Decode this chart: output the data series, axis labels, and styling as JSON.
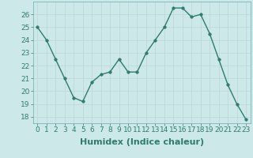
{
  "x": [
    0,
    1,
    2,
    3,
    4,
    5,
    6,
    7,
    8,
    9,
    10,
    11,
    12,
    13,
    14,
    15,
    16,
    17,
    18,
    19,
    20,
    21,
    22,
    23
  ],
  "y": [
    25,
    24,
    22.5,
    21,
    19.5,
    19.2,
    20.7,
    21.3,
    21.5,
    22.5,
    21.5,
    21.5,
    23,
    24,
    25,
    26.5,
    26.5,
    25.8,
    26.0,
    24.5,
    22.5,
    20.5,
    19,
    17.8
  ],
  "line_color": "#2e7d6e",
  "marker_color": "#2e7d6e",
  "bg_color": "#cce8e8",
  "grid_color": "#c0d8d8",
  "xlabel": "Humidex (Indice chaleur)",
  "xlabel_fontsize": 8,
  "xlim": [
    -0.5,
    23.5
  ],
  "ylim": [
    17.5,
    27.0
  ],
  "yticks": [
    18,
    19,
    20,
    21,
    22,
    23,
    24,
    25,
    26
  ],
  "xticks": [
    0,
    1,
    2,
    3,
    4,
    5,
    6,
    7,
    8,
    9,
    10,
    11,
    12,
    13,
    14,
    15,
    16,
    17,
    18,
    19,
    20,
    21,
    22,
    23
  ],
  "tick_fontsize": 6.5,
  "line_width": 1.0,
  "marker_size": 2.5
}
